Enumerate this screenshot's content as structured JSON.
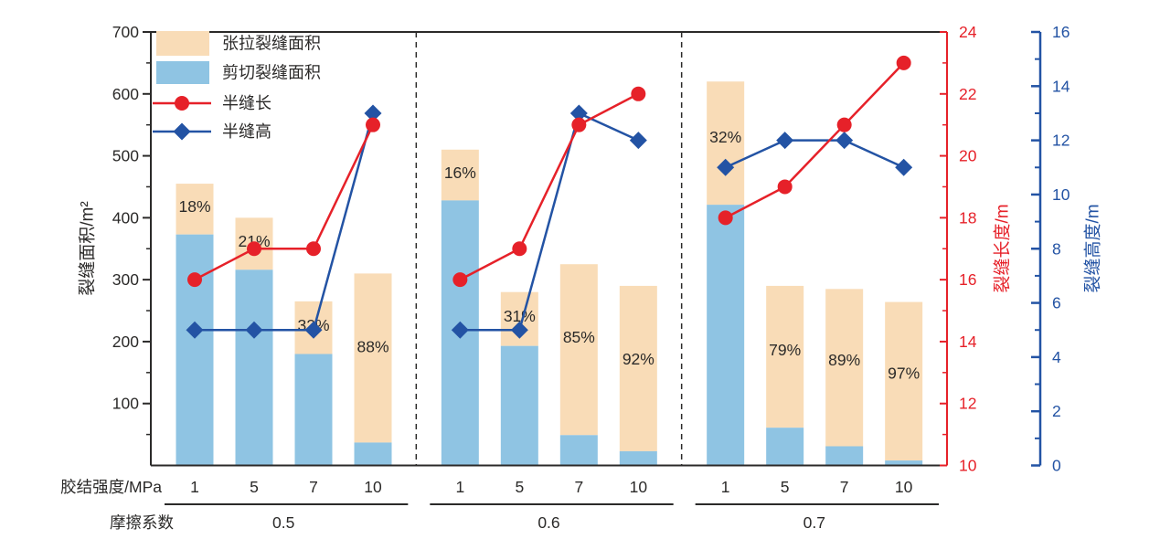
{
  "chart_data": {
    "type": "bar",
    "subtype": "stacked-bars-with-two-line-series",
    "title": "",
    "left_axis": {
      "label": "裂缝面积/m²",
      "min": 0,
      "max": 700,
      "major_step": 100,
      "minor_step": 50
    },
    "red_axis": {
      "label": "裂缝长度/m",
      "min": 10,
      "max": 24,
      "major_step": 2,
      "minor_step": 1
    },
    "blue_axis": {
      "label": "裂缝高度/m",
      "min": 0,
      "max": 16,
      "major_step": 2,
      "minor_step": 1
    },
    "x_row_label": "胶结强度/MPa",
    "friction_row_label": "摩擦系数",
    "legend": {
      "tensile_label": "张拉裂缝面积",
      "shear_label": "剪切裂缝面积",
      "half_length_label": "半缝长",
      "half_height_label": "半缝高"
    },
    "groups": [
      {
        "friction": "0.5",
        "cement_strength": [
          "1",
          "5",
          "7",
          "10"
        ],
        "total_area": [
          455,
          400,
          265,
          310
        ],
        "shear_area": [
          373,
          316,
          180,
          37
        ],
        "tensile_pct_labels": [
          "18%",
          "21%",
          "32%",
          "88%"
        ],
        "half_length_m": [
          16,
          17,
          17,
          21
        ],
        "half_height_m": [
          5,
          5,
          5,
          13
        ]
      },
      {
        "friction": "0.6",
        "cement_strength": [
          "1",
          "5",
          "7",
          "10"
        ],
        "total_area": [
          510,
          280,
          325,
          290
        ],
        "shear_area": [
          428,
          193,
          49,
          23
        ],
        "tensile_pct_labels": [
          "16%",
          "31%",
          "85%",
          "92%"
        ],
        "half_length_m": [
          16,
          17,
          21,
          22
        ],
        "half_height_m": [
          5,
          5,
          13,
          12
        ]
      },
      {
        "friction": "0.7",
        "cement_strength": [
          "1",
          "5",
          "7",
          "10"
        ],
        "total_area": [
          620,
          290,
          285,
          264
        ],
        "shear_area": [
          421,
          61,
          31,
          8
        ],
        "tensile_pct_labels": [
          "32%",
          "79%",
          "89%",
          "97%"
        ],
        "half_length_m": [
          18,
          19,
          21,
          23
        ],
        "half_height_m": [
          11,
          12,
          12,
          11
        ]
      }
    ],
    "colors": {
      "tensile_fill": "#F9DCB7",
      "shear_fill": "#8FC4E3",
      "half_length_line": "#E62129",
      "half_height_line": "#2353A4",
      "axis": "#2B2A29",
      "text": "#2B2A29"
    }
  }
}
